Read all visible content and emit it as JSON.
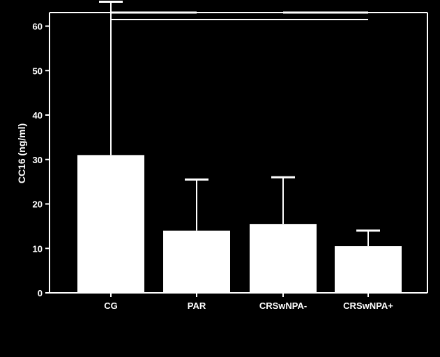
{
  "chart_data": {
    "type": "bar",
    "categories": [
      "CG",
      "PAR",
      "CRSwNPA-",
      "CRSwNPA+"
    ],
    "values": [
      31,
      14,
      15.5,
      10.5
    ],
    "error_upper": [
      65.5,
      25.5,
      26,
      14
    ],
    "title": "",
    "xlabel": "",
    "ylabel": "CC16 (ng/ml)",
    "ylim": [
      0,
      65
    ],
    "yticks": [
      0,
      10,
      20,
      30,
      40,
      50,
      60
    ],
    "grid": false,
    "colors": {
      "background": "#000000",
      "bar": "#ffffff",
      "axis": "#ffffff"
    },
    "significance_brackets": [
      {
        "from": 0,
        "to": 1
      },
      {
        "from": 2,
        "to": 3
      }
    ]
  }
}
